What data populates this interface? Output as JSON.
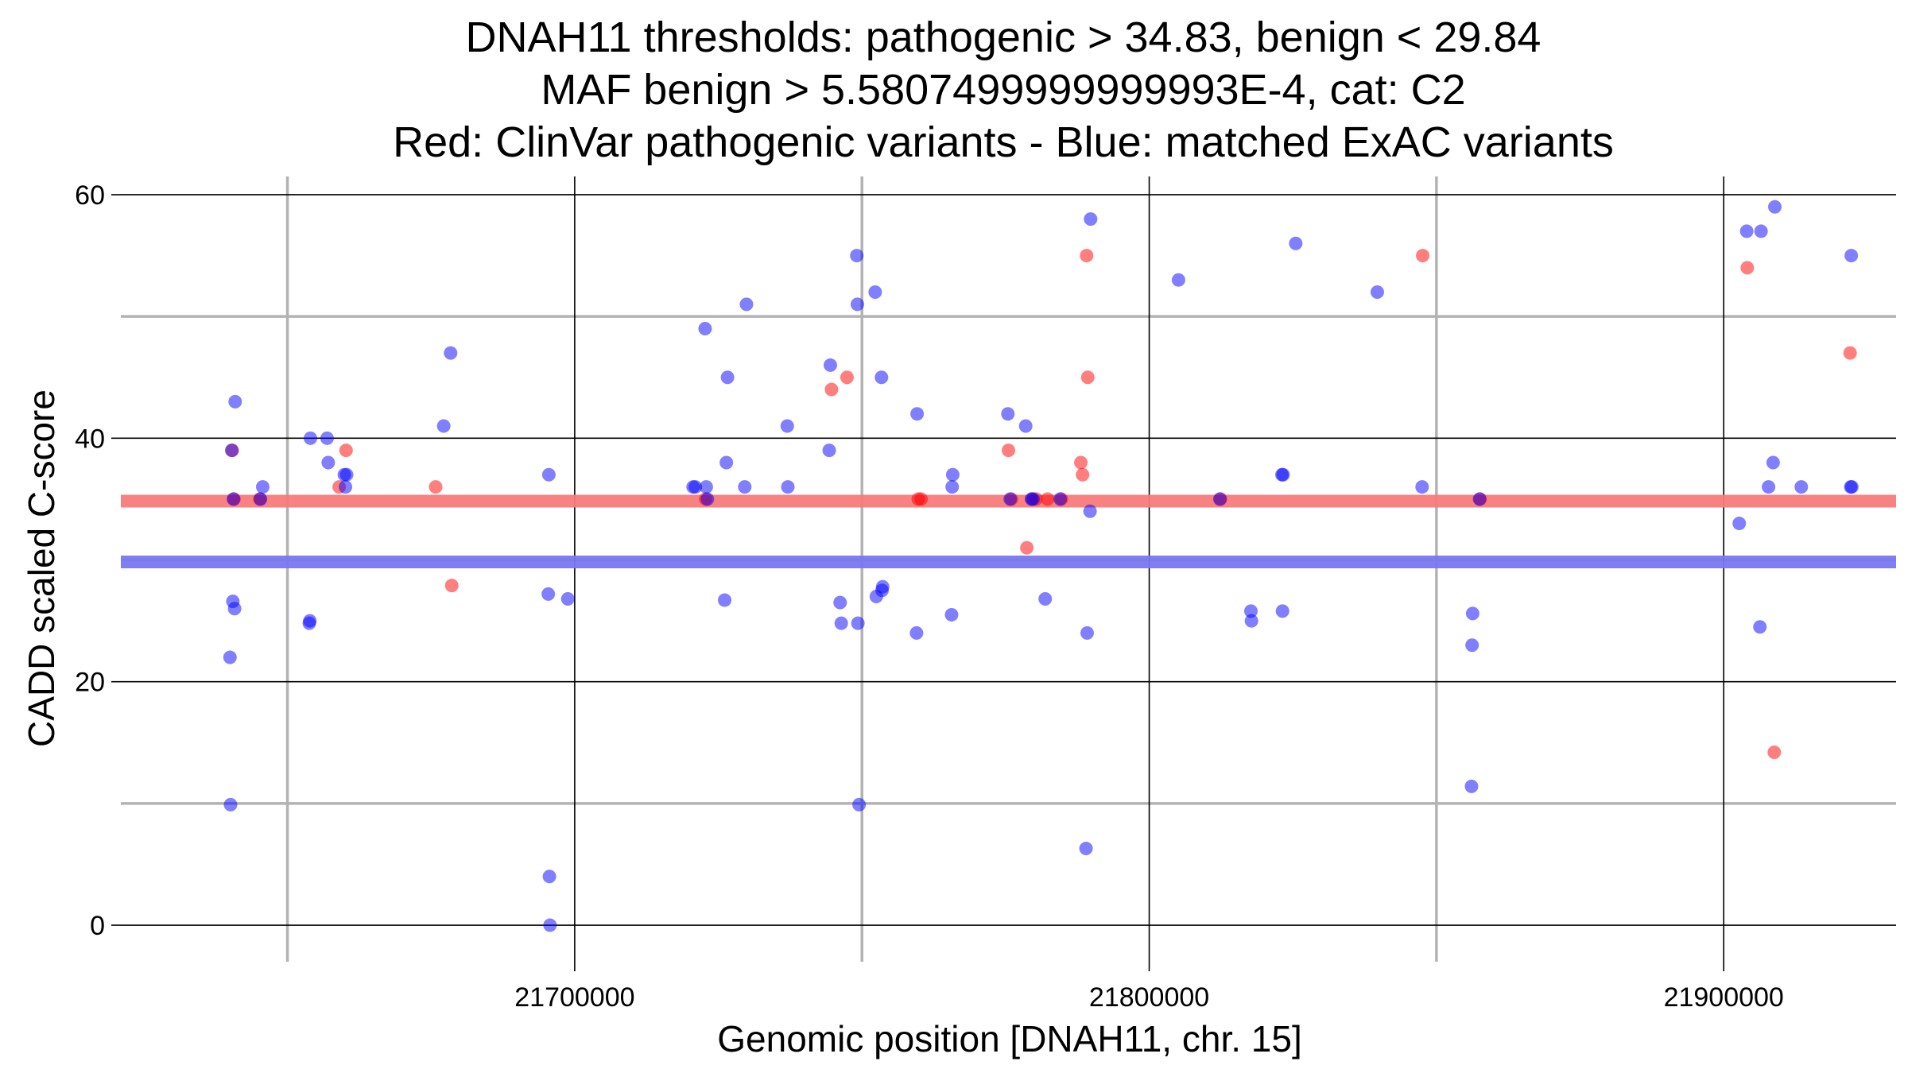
{
  "chart_data": {
    "type": "scatter",
    "title_lines": [
      "DNAH11 thresholds: pathogenic > 34.83, benign < 29.84",
      "MAF benign > 5.5807499999999993E-4, cat: C2",
      "Red: ClinVar pathogenic variants - Blue: matched ExAC variants"
    ],
    "xlabel": "Genomic position [DNAH11, chr. 15]",
    "ylabel": "CADD scaled C-score",
    "xlim": [
      21621000,
      21930000
    ],
    "ylim": [
      -3,
      61.5
    ],
    "x_ticks": [
      21700000,
      21800000,
      21900000
    ],
    "x_tick_labels": [
      "21700000",
      "21800000",
      "21900000"
    ],
    "x_minor_gridlines": [
      21650000,
      21750000,
      21850000
    ],
    "y_ticks": [
      0,
      20,
      40,
      60
    ],
    "y_tick_labels": [
      "0",
      "20",
      "40",
      "60"
    ],
    "y_minor_gridlines": [
      10,
      30,
      50
    ],
    "thresholds": {
      "pathogenic": {
        "value": 34.83,
        "color": "#f87a7a"
      },
      "benign": {
        "value": 29.84,
        "color": "#7878f0"
      }
    },
    "series": [
      {
        "name": "ClinVar pathogenic variants",
        "color": "#ff0000",
        "points": [
          [
            21640400,
            39
          ],
          [
            21640700,
            35
          ],
          [
            21645200,
            35
          ],
          [
            21659000,
            36
          ],
          [
            21660200,
            39
          ],
          [
            21675800,
            36
          ],
          [
            21678600,
            27.9
          ],
          [
            21722800,
            35
          ],
          [
            21744700,
            44
          ],
          [
            21747400,
            45
          ],
          [
            21759800,
            35
          ],
          [
            21760300,
            35
          ],
          [
            21775500,
            39
          ],
          [
            21776000,
            35
          ],
          [
            21778700,
            31
          ],
          [
            21779600,
            35
          ],
          [
            21780300,
            35
          ],
          [
            21782300,
            35
          ],
          [
            21784700,
            35
          ],
          [
            21788100,
            38
          ],
          [
            21788400,
            37
          ],
          [
            21789100,
            55
          ],
          [
            21789300,
            45
          ],
          [
            21812400,
            35
          ],
          [
            21847600,
            55
          ],
          [
            21857600,
            35
          ],
          [
            21904100,
            54
          ],
          [
            21908800,
            14.2
          ],
          [
            21922000,
            47
          ]
        ]
      },
      {
        "name": "matched ExAC variants",
        "color": "#0000ff",
        "points": [
          [
            21640000,
            22
          ],
          [
            21640100,
            9.9
          ],
          [
            21640300,
            39
          ],
          [
            21640500,
            26.6
          ],
          [
            21640600,
            35
          ],
          [
            21640800,
            26
          ],
          [
            21640900,
            43
          ],
          [
            21645300,
            35
          ],
          [
            21645700,
            36
          ],
          [
            21653800,
            24.8
          ],
          [
            21653900,
            25
          ],
          [
            21654000,
            40
          ],
          [
            21656900,
            40
          ],
          [
            21657100,
            38
          ],
          [
            21659900,
            37
          ],
          [
            21660100,
            36
          ],
          [
            21660300,
            37
          ],
          [
            21677200,
            41
          ],
          [
            21678400,
            47
          ],
          [
            21695400,
            27.2
          ],
          [
            21695500,
            37
          ],
          [
            21695600,
            4
          ],
          [
            21695700,
            0
          ],
          [
            21698800,
            26.8
          ],
          [
            21720600,
            36
          ],
          [
            21721000,
            36
          ],
          [
            21722700,
            49
          ],
          [
            21722900,
            36
          ],
          [
            21723100,
            35
          ],
          [
            21726100,
            26.7
          ],
          [
            21726400,
            38
          ],
          [
            21726600,
            45
          ],
          [
            21729600,
            36
          ],
          [
            21729900,
            51
          ],
          [
            21737000,
            41
          ],
          [
            21737100,
            36
          ],
          [
            21744300,
            39
          ],
          [
            21744500,
            46
          ],
          [
            21746200,
            26.5
          ],
          [
            21746400,
            24.8
          ],
          [
            21749100,
            55
          ],
          [
            21749200,
            51
          ],
          [
            21749300,
            24.8
          ],
          [
            21749500,
            9.9
          ],
          [
            21752300,
            52
          ],
          [
            21752500,
            27
          ],
          [
            21753400,
            45
          ],
          [
            21753500,
            27.5
          ],
          [
            21753600,
            27.8
          ],
          [
            21759500,
            24
          ],
          [
            21759600,
            42
          ],
          [
            21765600,
            25.5
          ],
          [
            21765700,
            36
          ],
          [
            21765800,
            37
          ],
          [
            21775400,
            42
          ],
          [
            21775800,
            35
          ],
          [
            21778500,
            41
          ],
          [
            21779500,
            35
          ],
          [
            21779800,
            35
          ],
          [
            21781900,
            26.8
          ],
          [
            21784500,
            35
          ],
          [
            21789000,
            6.3
          ],
          [
            21789200,
            24
          ],
          [
            21789700,
            34
          ],
          [
            21789800,
            58
          ],
          [
            21805100,
            53
          ],
          [
            21812300,
            35
          ],
          [
            21817700,
            25.8
          ],
          [
            21817800,
            25
          ],
          [
            21823100,
            37
          ],
          [
            21823200,
            25.8
          ],
          [
            21823300,
            37
          ],
          [
            21825500,
            56
          ],
          [
            21839700,
            52
          ],
          [
            21847500,
            36
          ],
          [
            21856100,
            11.4
          ],
          [
            21856200,
            23
          ],
          [
            21856300,
            25.6
          ],
          [
            21857500,
            35
          ],
          [
            21902700,
            33
          ],
          [
            21904000,
            57
          ],
          [
            21906300,
            24.5
          ],
          [
            21906500,
            57
          ],
          [
            21907800,
            36
          ],
          [
            21908600,
            38
          ],
          [
            21908900,
            59
          ],
          [
            21913500,
            36
          ],
          [
            21922100,
            36
          ],
          [
            21922200,
            55
          ],
          [
            21922300,
            36
          ]
        ]
      }
    ]
  }
}
